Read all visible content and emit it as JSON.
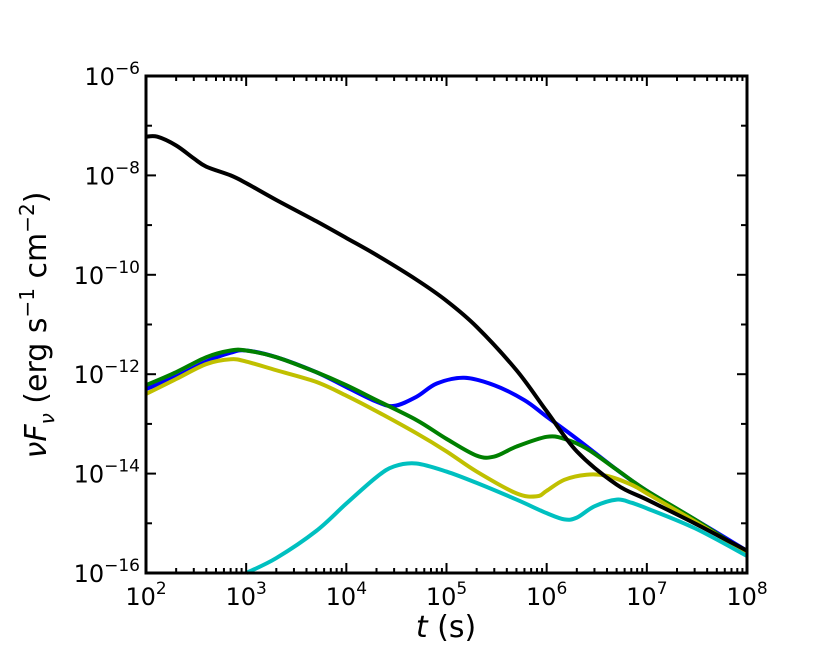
{
  "chart_data": {
    "type": "line",
    "title": "",
    "xlabel": "t (s)",
    "ylabel": "νFν (erg s⁻¹ cm⁻²)",
    "xscale": "log",
    "yscale": "log",
    "xlim": [
      100,
      100000000
    ],
    "ylim": [
      1e-16,
      1e-06
    ],
    "grid": false,
    "legend": "none",
    "x_ticks": [
      {
        "base": "10",
        "exp": "2",
        "value": 100
      },
      {
        "base": "10",
        "exp": "3",
        "value": 1000
      },
      {
        "base": "10",
        "exp": "4",
        "value": 10000
      },
      {
        "base": "10",
        "exp": "5",
        "value": 100000
      },
      {
        "base": "10",
        "exp": "6",
        "value": 1000000
      },
      {
        "base": "10",
        "exp": "7",
        "value": 10000000
      },
      {
        "base": "10",
        "exp": "8",
        "value": 100000000
      }
    ],
    "y_ticks": [
      {
        "base": "10",
        "exp": "−16",
        "value": 1e-16
      },
      {
        "base": "10",
        "exp": "−14",
        "value": 1e-14
      },
      {
        "base": "10",
        "exp": "−12",
        "value": 1e-12
      },
      {
        "base": "10",
        "exp": "−10",
        "value": 1e-10
      },
      {
        "base": "10",
        "exp": "−8",
        "value": 1e-08
      },
      {
        "base": "10",
        "exp": "−6",
        "value": 1e-06
      }
    ],
    "series": [
      {
        "color": "#0000ff",
        "x": [
          100,
          200,
          400,
          700,
          1000,
          2000,
          5000,
          10000,
          20000,
          30000,
          50000,
          80000,
          150000,
          300000,
          600000,
          1000000,
          2000000,
          5000000,
          10000000,
          30000000,
          100000000
        ],
        "y": [
          5e-13,
          9e-13,
          1.8e-12,
          2.7e-12,
          3e-12,
          2.2e-12,
          1.1e-12,
          5.5e-13,
          2.8e-13,
          2.3e-13,
          3.5e-13,
          6.5e-13,
          8.5e-13,
          6e-13,
          3e-13,
          1.4e-13,
          5e-14,
          1.2e-14,
          4.5e-15,
          1.2e-15,
          2.8e-16
        ]
      },
      {
        "color": "#008000",
        "x": [
          100,
          200,
          400,
          700,
          1000,
          2000,
          5000,
          10000,
          20000,
          50000,
          100000,
          200000,
          300000,
          500000,
          1000000,
          1500000,
          2500000,
          5000000,
          10000000,
          30000000,
          100000000
        ],
        "y": [
          6e-13,
          1.1e-12,
          2.2e-12,
          3e-12,
          3e-12,
          2.2e-12,
          1.1e-12,
          6e-13,
          3e-13,
          1.2e-13,
          5e-14,
          2.3e-14,
          2.2e-14,
          3.5e-14,
          5.5e-14,
          5e-14,
          3.2e-14,
          1.2e-14,
          4.5e-15,
          1.2e-15,
          2.5e-16
        ]
      },
      {
        "color": "#c0c000",
        "x": [
          100,
          200,
          400,
          700,
          1000,
          2000,
          5000,
          10000,
          20000,
          50000,
          100000,
          200000,
          500000,
          800000,
          1000000,
          1500000,
          2500000,
          4000000,
          7000000,
          10000000,
          30000000,
          100000000
        ],
        "y": [
          4e-13,
          8e-13,
          1.6e-12,
          2e-12,
          1.8e-12,
          1.2e-12,
          7e-13,
          3.7e-13,
          1.8e-13,
          6.5e-14,
          2.8e-14,
          1.1e-14,
          4e-15,
          3.5e-15,
          4.5e-15,
          7.5e-15,
          9.5e-15,
          9e-15,
          6e-15,
          4e-15,
          1.1e-15,
          2.5e-16
        ]
      },
      {
        "color": "#00c0c0",
        "x": [
          1000,
          2000,
          5000,
          10000,
          20000,
          30000,
          50000,
          100000,
          200000,
          500000,
          1000000,
          1500000,
          2000000,
          3000000,
          5000000,
          7000000,
          10000000,
          30000000,
          100000000
        ],
        "y": [
          1e-16,
          2e-16,
          7e-16,
          2.5e-15,
          8.5e-15,
          1.4e-14,
          1.6e-14,
          1.1e-14,
          6.5e-15,
          3e-15,
          1.6e-15,
          1.2e-15,
          1.3e-15,
          2.2e-15,
          3e-15,
          2.6e-15,
          2e-15,
          8e-16,
          2.2e-16
        ]
      },
      {
        "color": "#000000",
        "x": [
          100,
          130,
          200,
          300,
          400,
          700,
          1000,
          2000,
          5000,
          10000,
          20000,
          50000,
          100000,
          200000,
          500000,
          1000000,
          2000000,
          5000000,
          10000000,
          30000000,
          100000000
        ],
        "y": [
          6e-08,
          6e-08,
          4e-08,
          2.2e-08,
          1.5e-08,
          1e-08,
          7e-09,
          3.2e-09,
          1.2e-09,
          5.5e-10,
          2.5e-10,
          8e-11,
          3e-11,
          9e-12,
          1.2e-12,
          1.8e-13,
          2.8e-14,
          6e-15,
          3e-15,
          1e-15,
          2.8e-16
        ]
      }
    ]
  }
}
